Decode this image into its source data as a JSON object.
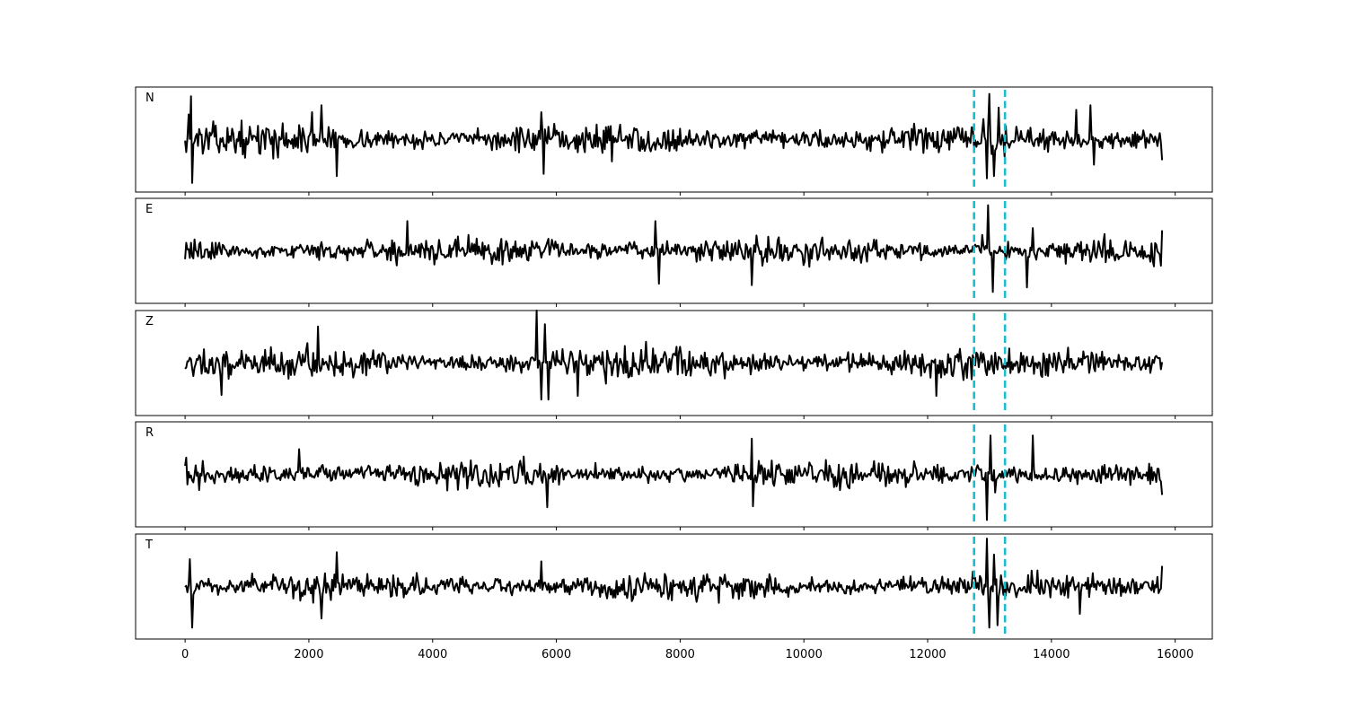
{
  "chart_data": {
    "type": "line",
    "x_range": [
      -800,
      16600
    ],
    "y_range": [
      -1.15,
      1.15
    ],
    "x_ticks": [
      0,
      2000,
      4000,
      6000,
      8000,
      10000,
      12000,
      14000,
      16000
    ],
    "x_tick_labels": [
      "0",
      "2000",
      "4000",
      "6000",
      "8000",
      "10000",
      "12000",
      "14000",
      "16000"
    ],
    "n_samples": 15800,
    "grid": false,
    "colors": {
      "trace": "#000000",
      "marker": "#17becf",
      "frame": "#000000"
    },
    "markers": [
      12750,
      13250
    ],
    "panels": [
      {
        "label": "N",
        "amplitude": 0.5,
        "features": [
          {
            "x": 60,
            "value": 0.55
          },
          {
            "x": 100,
            "value": 0.95
          },
          {
            "x": 120,
            "value": -0.95
          },
          {
            "x": 2050,
            "value": 0.6
          },
          {
            "x": 2200,
            "value": 0.75
          },
          {
            "x": 2450,
            "value": -0.8
          },
          {
            "x": 5750,
            "value": 0.6
          },
          {
            "x": 5800,
            "value": -0.75
          },
          {
            "x": 12900,
            "value": 0.45
          },
          {
            "x": 12960,
            "value": -0.85
          },
          {
            "x": 13000,
            "value": 1.0
          },
          {
            "x": 13080,
            "value": -0.8
          },
          {
            "x": 13140,
            "value": 0.7
          },
          {
            "x": 14400,
            "value": 0.65
          },
          {
            "x": 14630,
            "value": 0.75
          },
          {
            "x": 14680,
            "value": -0.55
          },
          {
            "x": 15800,
            "value": -0.45
          }
        ]
      },
      {
        "label": "E",
        "amplitude": 0.45,
        "features": [
          {
            "x": 3600,
            "value": 0.65
          },
          {
            "x": 7600,
            "value": 0.65
          },
          {
            "x": 7650,
            "value": -0.72
          },
          {
            "x": 9150,
            "value": -0.75
          },
          {
            "x": 12880,
            "value": 0.35
          },
          {
            "x": 12980,
            "value": 1.0
          },
          {
            "x": 13050,
            "value": -0.9
          },
          {
            "x": 13300,
            "value": 0.2
          },
          {
            "x": 13600,
            "value": -0.8
          },
          {
            "x": 13700,
            "value": 0.5
          },
          {
            "x": 15800,
            "value": 0.45
          }
        ]
      },
      {
        "label": "Z",
        "amplitude": 0.5,
        "features": [
          {
            "x": 580,
            "value": -0.7
          },
          {
            "x": 2150,
            "value": 0.8
          },
          {
            "x": 5680,
            "value": 1.15
          },
          {
            "x": 5750,
            "value": -0.8
          },
          {
            "x": 5820,
            "value": 0.85
          },
          {
            "x": 5880,
            "value": -0.8
          },
          {
            "x": 6350,
            "value": -0.72
          },
          {
            "x": 12150,
            "value": -0.72
          }
        ]
      },
      {
        "label": "R",
        "amplitude": 0.45,
        "features": [
          {
            "x": 1850,
            "value": 0.55
          },
          {
            "x": 5850,
            "value": -0.72
          },
          {
            "x": 9150,
            "value": 0.78
          },
          {
            "x": 9180,
            "value": -0.7
          },
          {
            "x": 12800,
            "value": 0.2
          },
          {
            "x": 12950,
            "value": -1.0
          },
          {
            "x": 13020,
            "value": 0.85
          },
          {
            "x": 13100,
            "value": -0.4
          },
          {
            "x": 13700,
            "value": 0.85
          },
          {
            "x": 15800,
            "value": -0.45
          }
        ]
      },
      {
        "label": "T",
        "amplitude": 0.45,
        "features": [
          {
            "x": 80,
            "value": 0.6
          },
          {
            "x": 110,
            "value": -0.9
          },
          {
            "x": 2200,
            "value": -0.7
          },
          {
            "x": 2450,
            "value": 0.75
          },
          {
            "x": 5760,
            "value": 0.55
          },
          {
            "x": 12950,
            "value": 1.05
          },
          {
            "x": 13000,
            "value": -0.9
          },
          {
            "x": 13080,
            "value": 0.7
          },
          {
            "x": 13120,
            "value": -0.85
          },
          {
            "x": 14450,
            "value": -0.6
          },
          {
            "x": 15800,
            "value": 0.45
          }
        ]
      }
    ]
  }
}
